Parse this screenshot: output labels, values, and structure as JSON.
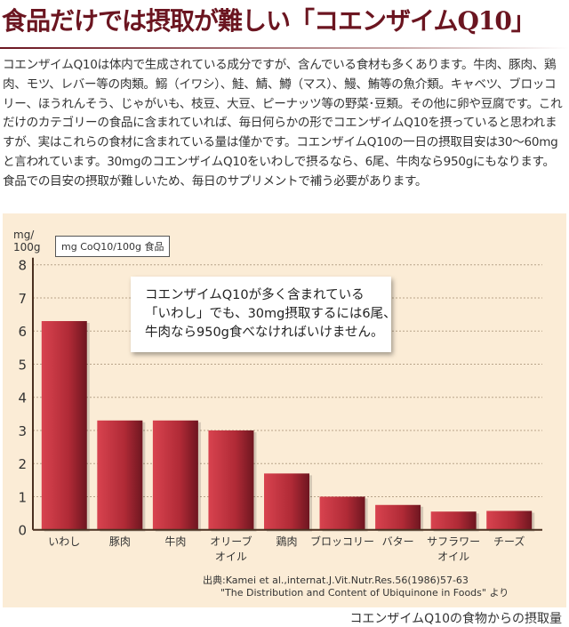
{
  "title": "食品だけでは摂取が難しい「コエンザイムQ10」",
  "body": "コエンザイムQ10は体内で生成されている成分ですが、含んでいる食材も多くあります。牛肉、豚肉、鶏肉、モツ、レバー等の肉類。鰯（イワシ）、鮭、鯖、鱒（マス）、鰻、鮪等の魚介類。キャベツ、ブロッコリー、ほうれんそう、じゃがいも、枝豆、大豆、ピーナッツ等の野菜･豆類。その他に卵や豆腐です。これだけのカテゴリーの食品に含まれていれば、毎日何らかの形でコエンザイムQ10を摂っていると思われますが、実はこれらの食材に含まれている量は僅かです。コエンザイムQ10の一日の摂取目安は30～60mgと言われています。30mgのコエンザイムQ10をいわしで摂るなら、6尾、牛肉なら950gにもなります。食品での目安の摂取が難しいため、毎日のサプリメントで補う必要があります。",
  "chart_data": {
    "type": "bar",
    "ylabel": "mg/\n100g",
    "legend": "mg CoQ10/100g 食品",
    "ylim": [
      0,
      8
    ],
    "yticks": [
      "0",
      "1",
      "2",
      "3",
      "4",
      "5",
      "6",
      "7",
      "8"
    ],
    "grid": true,
    "categories": [
      "いわし",
      "豚肉",
      "牛肉",
      "オリーブ\nオイル",
      "鶏肉",
      "ブロッコリー",
      "バター",
      "サフラワー\nオイル",
      "チーズ"
    ],
    "values": [
      6.3,
      3.3,
      3.3,
      3.0,
      1.7,
      1.0,
      0.75,
      0.55,
      0.57
    ],
    "bar_color": "#c0303c",
    "annotation": "コエンザイムQ10が多く含まれている\n「いわし」でも、30mg摂取するには6尾、\n牛肉なら950g食べなければいけません。"
  },
  "source_line1": "出典:Kamei et al.,internat.J.Vit.Nutr.Res.56(1986)57-63",
  "source_line2": "\"The Distribution and Content of Ubiquinone in Foods\" より",
  "caption": "コエンザイムQ10の食物からの摂取量"
}
